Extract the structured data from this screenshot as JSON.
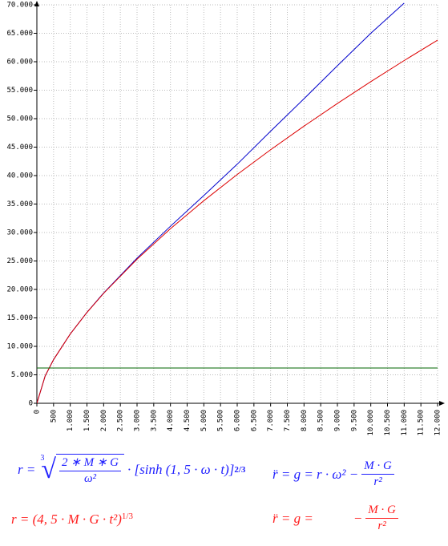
{
  "chart_data": {
    "type": "line",
    "x": [
      0,
      250,
      500,
      1000,
      1500,
      2000,
      3000,
      4000,
      5000,
      6000,
      7000,
      8000,
      9000,
      10000,
      11000,
      12000
    ],
    "series": [
      {
        "color": "#0000cc",
        "values": [
          0,
          4830,
          7670,
          12180,
          15970,
          19380,
          25500,
          31100,
          36500,
          42000,
          47800,
          53500,
          59300,
          65000,
          70300,
          null
        ]
      },
      {
        "color": "#dd0000",
        "values": [
          0,
          4830,
          7670,
          12170,
          15950,
          19320,
          25320,
          30670,
          35590,
          40190,
          44540,
          48690,
          52670,
          56500,
          60210,
          63800
        ]
      },
      {
        "color": "#006600",
        "values": [
          6200,
          6200,
          6200,
          6200,
          6200,
          6200,
          6200,
          6200,
          6200,
          6200,
          6200,
          6200,
          6200,
          6200,
          6200,
          6200
        ]
      }
    ],
    "xlim": [
      0,
      12000
    ],
    "xticks": [
      0,
      500,
      {
        "value": 1000,
        "label": "1.000"
      },
      {
        "value": 1500,
        "label": "1.500"
      },
      {
        "value": 2000,
        "label": "2.000"
      },
      {
        "value": 2500,
        "label": "2.500"
      },
      {
        "value": 3000,
        "label": "3.000"
      },
      {
        "value": 3500,
        "label": "3.500"
      },
      {
        "value": 4000,
        "label": "4.000"
      },
      {
        "value": 4500,
        "label": "4.500"
      },
      {
        "value": 5000,
        "label": "5.000"
      },
      {
        "value": 5500,
        "label": "5.500"
      },
      {
        "value": 6000,
        "label": "6.000"
      },
      {
        "value": 6500,
        "label": "6.500"
      },
      {
        "value": 7000,
        "label": "7.000"
      },
      {
        "value": 7500,
        "label": "7.500"
      },
      {
        "value": 8000,
        "label": "8.000"
      },
      {
        "value": 8500,
        "label": "8.500"
      },
      {
        "value": 9000,
        "label": "9.000"
      },
      {
        "value": 9500,
        "label": "9.500"
      },
      {
        "value": 10000,
        "label": "10.000"
      },
      {
        "value": 10500,
        "label": "10.500"
      },
      {
        "value": 11000,
        "label": "11.000"
      },
      {
        "value": 11500,
        "label": "11.500"
      },
      {
        "value": 12000,
        "label": "12.000"
      }
    ],
    "ylim": [
      0,
      70000
    ],
    "yticks": [
      0,
      {
        "value": 5000,
        "label": "5.000"
      },
      {
        "value": 10000,
        "label": "10.000"
      },
      {
        "value": 15000,
        "label": "15.000"
      },
      {
        "value": 20000,
        "label": "20.000"
      },
      {
        "value": 25000,
        "label": "25.000"
      },
      {
        "value": 30000,
        "label": "30.000"
      },
      {
        "value": 35000,
        "label": "35.000"
      },
      {
        "value": 40000,
        "label": "40.000"
      },
      {
        "value": 45000,
        "label": "45.000"
      },
      {
        "value": 50000,
        "label": "50.000"
      },
      {
        "value": 55000,
        "label": "55.000"
      },
      {
        "value": 60000,
        "label": "60.000"
      },
      {
        "value": 65000,
        "label": "65.000"
      },
      {
        "value": 70000,
        "label": "70.000"
      }
    ],
    "grid": true
  },
  "formulas": {
    "blue_1": {
      "lhs": "r =",
      "root_index": "3",
      "numerator": "2 ∗ M ∗ G",
      "denominator": "ω²",
      "rest": "· [sinh (1, 5 · ω · t)]",
      "exponent": "2/3"
    },
    "blue_2": {
      "lhs": "r̈ = g = r · ω² −",
      "numerator": "M · G",
      "denominator": "r²"
    },
    "red_1": {
      "text": "r = (4, 5 · M · G · t²)",
      "exponent": "1/3"
    },
    "red_2": {
      "lhs": "r̈ = g =",
      "sign": "−",
      "numerator": "M · G",
      "denominator": "r²"
    }
  }
}
